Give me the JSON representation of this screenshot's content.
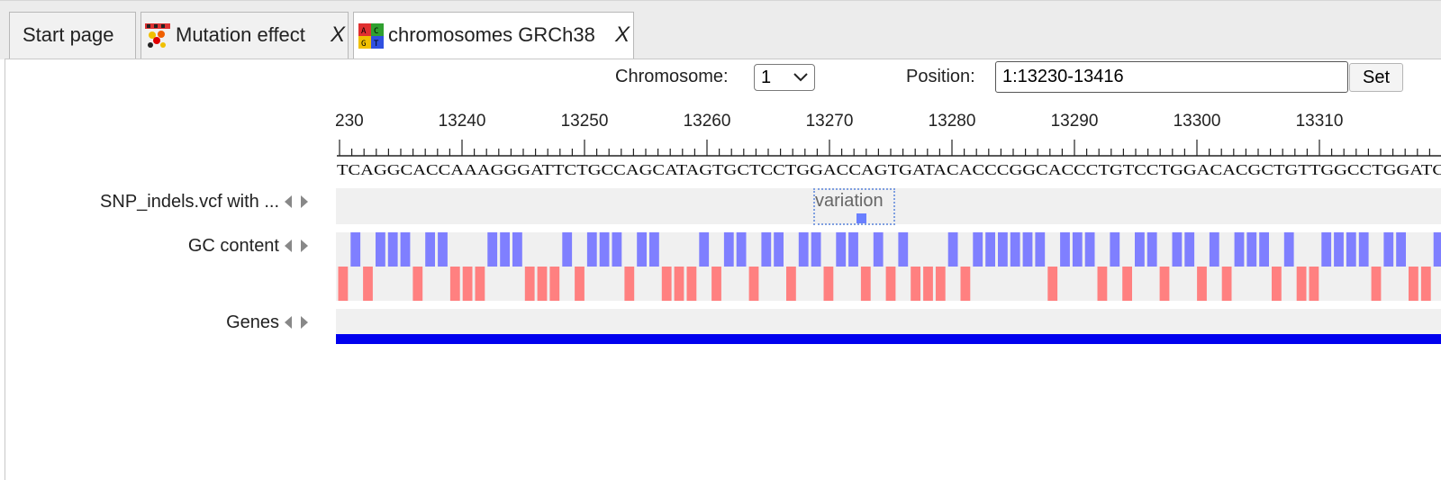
{
  "tabs": [
    {
      "label": "Start page",
      "icon": null,
      "closable": false
    },
    {
      "label": "Mutation effect",
      "icon": "mutation-effect-icon",
      "closable": true,
      "close_label": "X"
    },
    {
      "label": "chromosomes GRCh38",
      "icon": "chromosome-sequence-icon",
      "closable": true,
      "close_label": "X"
    }
  ],
  "controls": {
    "chromosome_label": "Chromosome:",
    "chromosome_value": "1",
    "position_label": "Position:",
    "position_value": "1:13230-13416",
    "set_label": "Set"
  },
  "ruler": {
    "partial_label": "230",
    "labels": [
      "13240",
      "13250",
      "13260",
      "13270",
      "13280",
      "13290",
      "13300",
      "13310"
    ]
  },
  "sequence": "TCAGGCACCAAAGGGATTCTGCCAGCATAGTGCTCCTGGACCAGTGATACACCCGGCACCCTGTCCTGGACACGCTGTTGGCCTGGATC",
  "tracks": {
    "snp": {
      "label": "SNP_indels.vcf with ...",
      "feature_label": "variation"
    },
    "gc": {
      "label": "GC content"
    },
    "genes": {
      "label": "Genes"
    }
  },
  "colors": {
    "gc_blue": "#7f7fff",
    "at_red": "#ff8080",
    "gene": "#0000ee",
    "variation_border": "#7f9fe0"
  }
}
